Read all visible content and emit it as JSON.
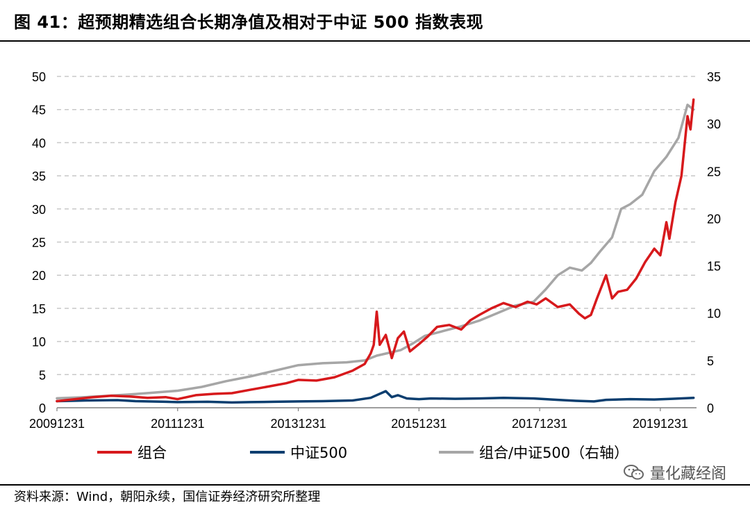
{
  "title": "图 41：超预期精选组合长期净值及相对于中证 500 指数表现",
  "source": "资料来源：Wind，朝阳永续，国信证券经济研究所整理",
  "watermark": "量化藏经阁",
  "colors": {
    "portfolio": "#d7191c",
    "csi500": "#0b3e6f",
    "relative": "#a6a6a6",
    "grid": "#c8c8c8"
  },
  "chart_data": {
    "type": "line",
    "x_tick_labels": [
      "20091231",
      "20111231",
      "20131231",
      "20151231",
      "20171231",
      "20191231"
    ],
    "x_ticks": [
      2010.0,
      2012.0,
      2014.0,
      2016.0,
      2018.0,
      2020.0
    ],
    "x_range": [
      2010.0,
      2020.6
    ],
    "ylim_left": [
      0,
      50
    ],
    "yticks_left": [
      0,
      5,
      10,
      15,
      20,
      25,
      30,
      35,
      40,
      45,
      50
    ],
    "ylim_right": [
      0,
      35
    ],
    "yticks_right": [
      0,
      5,
      10,
      15,
      20,
      25,
      30,
      35
    ],
    "grid": true,
    "legend_position": "bottom",
    "series": [
      {
        "name": "组合",
        "axis": "left",
        "color_key": "portfolio",
        "x": [
          2010.0,
          2010.3,
          2010.6,
          2010.9,
          2011.2,
          2011.5,
          2011.8,
          2012.0,
          2012.3,
          2012.6,
          2012.9,
          2013.2,
          2013.5,
          2013.8,
          2014.0,
          2014.3,
          2014.6,
          2014.9,
          2015.1,
          2015.2,
          2015.25,
          2015.3,
          2015.35,
          2015.45,
          2015.55,
          2015.65,
          2015.75,
          2015.85,
          2016.0,
          2016.15,
          2016.3,
          2016.5,
          2016.7,
          2016.85,
          2017.0,
          2017.2,
          2017.4,
          2017.6,
          2017.8,
          2017.95,
          2018.1,
          2018.3,
          2018.5,
          2018.65,
          2018.75,
          2018.85,
          2018.95,
          2019.1,
          2019.2,
          2019.3,
          2019.45,
          2019.6,
          2019.75,
          2019.9,
          2020.0,
          2020.1,
          2020.15,
          2020.25,
          2020.35,
          2020.45,
          2020.5,
          2020.55
        ],
        "y": [
          1.0,
          1.3,
          1.6,
          1.8,
          1.7,
          1.5,
          1.6,
          1.3,
          1.9,
          2.1,
          2.2,
          2.7,
          3.2,
          3.7,
          4.2,
          4.1,
          4.6,
          5.6,
          6.6,
          8.2,
          9.5,
          14.5,
          9.5,
          11.0,
          7.5,
          10.5,
          11.5,
          8.5,
          9.6,
          10.8,
          12.2,
          12.5,
          11.8,
          13.2,
          14.0,
          15.0,
          15.8,
          15.2,
          16.0,
          15.6,
          16.5,
          15.2,
          15.6,
          14.2,
          13.5,
          14.0,
          16.5,
          20.0,
          16.5,
          17.5,
          17.8,
          19.5,
          22.0,
          24.0,
          23.0,
          28.0,
          25.5,
          31.0,
          35.0,
          44.0,
          42.0,
          46.5
        ]
      },
      {
        "name": "中证500",
        "axis": "left",
        "color_key": "csi500",
        "x": [
          2010.0,
          2010.5,
          2011.0,
          2011.3,
          2011.8,
          2012.0,
          2012.5,
          2012.9,
          2013.2,
          2013.6,
          2014.0,
          2014.4,
          2014.9,
          2015.2,
          2015.45,
          2015.55,
          2015.65,
          2015.8,
          2016.0,
          2016.2,
          2016.6,
          2017.0,
          2017.4,
          2017.9,
          2018.3,
          2018.6,
          2018.9,
          2019.1,
          2019.5,
          2019.9,
          2020.2,
          2020.55
        ],
        "y": [
          1.0,
          1.1,
          1.15,
          1.0,
          0.9,
          0.85,
          0.9,
          0.8,
          0.85,
          0.9,
          0.95,
          1.0,
          1.1,
          1.5,
          2.5,
          1.6,
          1.9,
          1.4,
          1.3,
          1.4,
          1.35,
          1.4,
          1.5,
          1.4,
          1.2,
          1.05,
          0.95,
          1.2,
          1.3,
          1.25,
          1.35,
          1.5
        ]
      },
      {
        "name": "组合/中证500（右轴）",
        "axis": "right",
        "color_key": "relative",
        "x": [
          2010.0,
          2010.4,
          2010.8,
          2011.2,
          2011.6,
          2012.0,
          2012.4,
          2012.8,
          2013.2,
          2013.6,
          2014.0,
          2014.4,
          2014.8,
          2015.1,
          2015.3,
          2015.5,
          2015.7,
          2015.9,
          2016.1,
          2016.4,
          2016.7,
          2017.0,
          2017.3,
          2017.6,
          2017.9,
          2018.1,
          2018.3,
          2018.5,
          2018.7,
          2018.85,
          2019.0,
          2019.2,
          2019.35,
          2019.5,
          2019.7,
          2019.9,
          2020.1,
          2020.3,
          2020.45,
          2020.55
        ],
        "y": [
          1.0,
          1.1,
          1.25,
          1.4,
          1.6,
          1.8,
          2.2,
          2.8,
          3.3,
          3.9,
          4.5,
          4.7,
          4.8,
          5.0,
          5.5,
          5.8,
          6.1,
          6.8,
          7.6,
          8.1,
          8.6,
          9.2,
          10.0,
          10.8,
          11.2,
          12.5,
          14.0,
          14.8,
          14.5,
          15.3,
          16.5,
          18.0,
          21.0,
          21.5,
          22.5,
          25.0,
          26.5,
          28.5,
          32.0,
          31.5
        ]
      }
    ]
  }
}
